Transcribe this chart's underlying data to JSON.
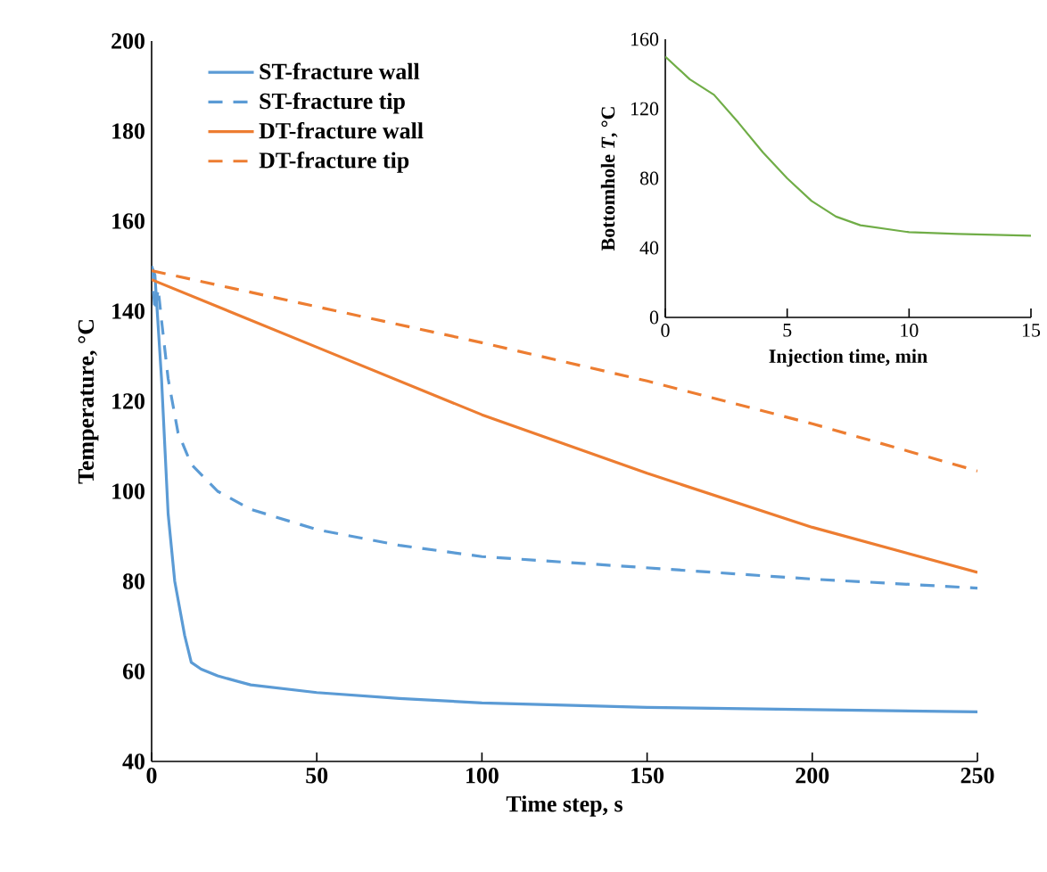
{
  "chart_data": [
    {
      "type": "line",
      "xlabel": "Time step, s",
      "ylabel": "Temperature, °C",
      "xlim": [
        0,
        250
      ],
      "ylim": [
        40,
        200
      ],
      "xticks": [
        0,
        50,
        100,
        150,
        200,
        250
      ],
      "yticks": [
        40,
        60,
        80,
        100,
        120,
        140,
        160,
        180,
        200
      ],
      "legend": "top left",
      "series": [
        {
          "name": "ST-fracture wall",
          "color": "#5b9bd5",
          "line_style": "solid",
          "x": [
            0,
            1,
            3,
            5,
            7,
            10,
            12,
            15,
            20,
            30,
            50,
            75,
            100,
            150,
            200,
            250
          ],
          "values": [
            150,
            148,
            125,
            95,
            80,
            68,
            62,
            60.5,
            59,
            57,
            55.3,
            54,
            53,
            52,
            51.5,
            51
          ]
        },
        {
          "name": "ST-fracture tip",
          "color": "#5b9bd5",
          "line_style": "dashed",
          "x": [
            0,
            1,
            2,
            3,
            5,
            8,
            12,
            20,
            30,
            50,
            75,
            100,
            150,
            200,
            250
          ],
          "values": [
            150,
            140,
            145,
            138,
            125,
            113,
            106,
            100,
            96,
            91.5,
            88,
            85.5,
            83,
            80.5,
            78.5
          ]
        },
        {
          "name": "DT-fracture wall",
          "color": "#ed7d31",
          "line_style": "solid",
          "x": [
            0,
            50,
            100,
            150,
            200,
            250
          ],
          "values": [
            147,
            132,
            117,
            104,
            92,
            82
          ]
        },
        {
          "name": "DT-fracture tip",
          "color": "#ed7d31",
          "line_style": "dashed",
          "x": [
            0,
            50,
            100,
            150,
            200,
            250
          ],
          "values": [
            149,
            141,
            133,
            124.5,
            115,
            104.5
          ]
        }
      ]
    },
    {
      "type": "line",
      "xlabel": "Injection time, min",
      "ylabel": "Bottomhole *T*, °C",
      "xlim": [
        0,
        15
      ],
      "ylim": [
        0,
        160
      ],
      "xticks": [
        0,
        5,
        10,
        15
      ],
      "yticks": [
        0,
        40,
        80,
        120,
        160
      ],
      "series": [
        {
          "color": "#70ad47",
          "x": [
            0,
            1,
            2,
            3,
            4,
            5,
            6,
            7,
            8,
            9,
            10,
            12,
            15
          ],
          "values": [
            150,
            137,
            128,
            112,
            95,
            80,
            67,
            58,
            53,
            51,
            49,
            48,
            47
          ]
        }
      ]
    }
  ]
}
